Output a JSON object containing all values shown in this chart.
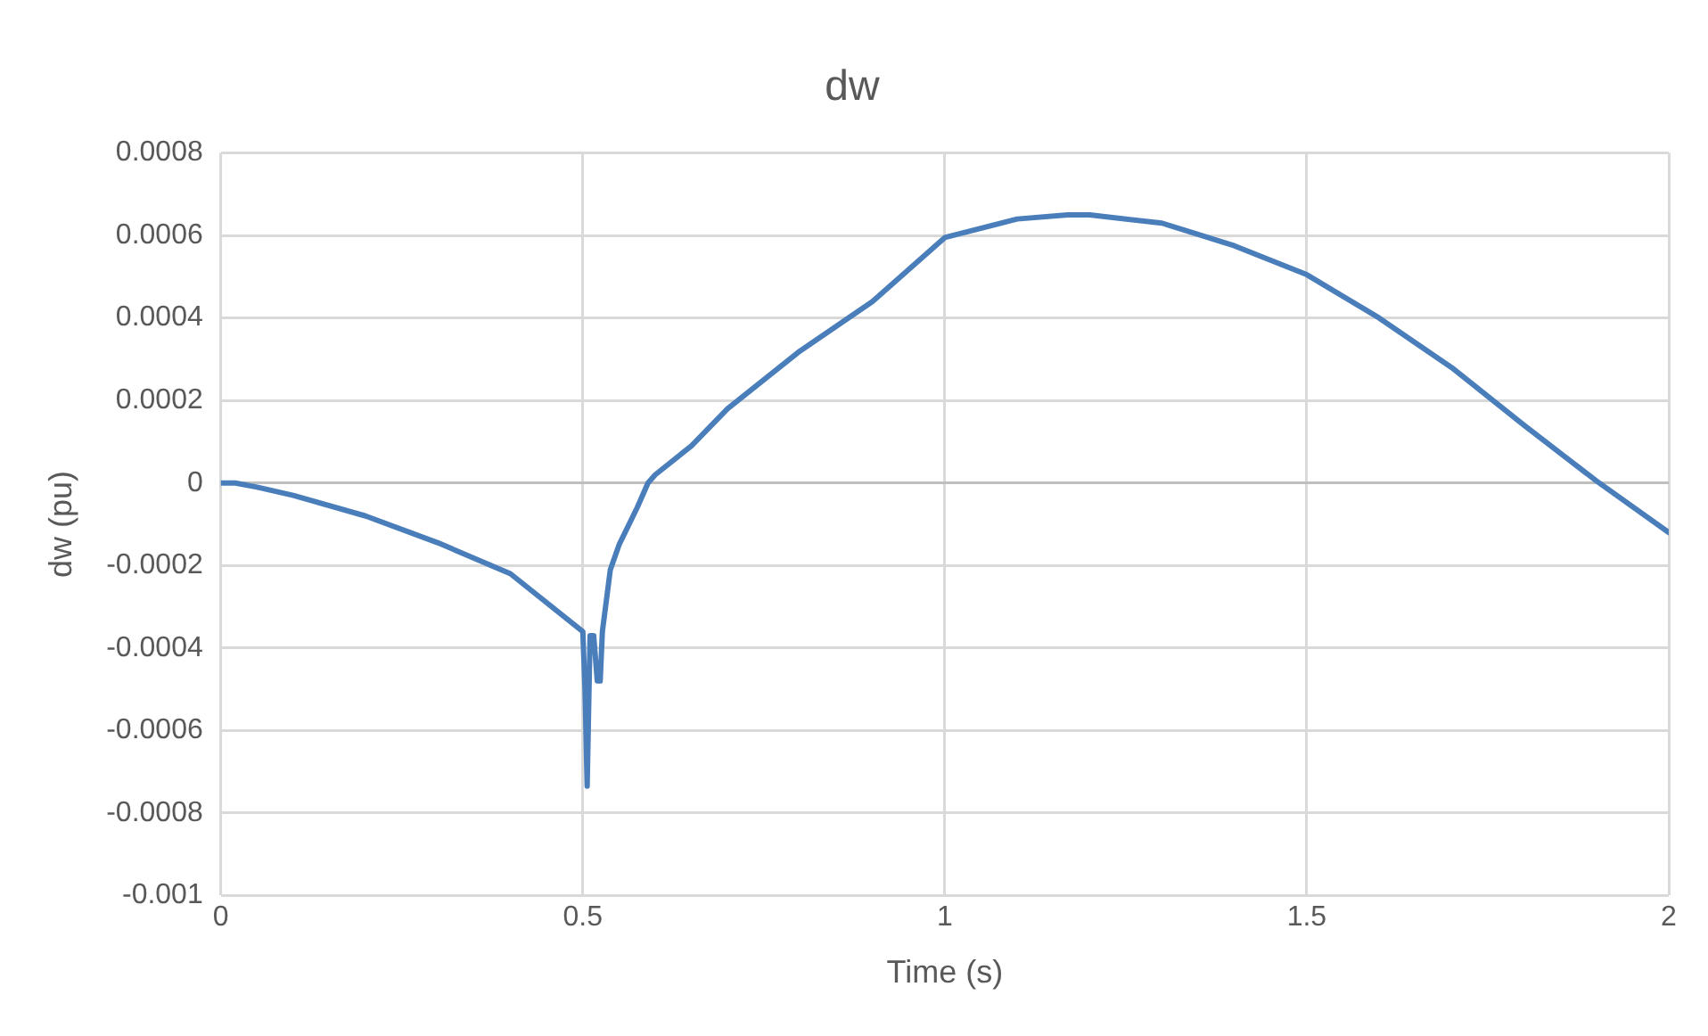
{
  "chart_data": {
    "type": "line",
    "title": "dw",
    "xlabel": "Time (s)",
    "ylabel": "dw (pu)",
    "xlim": [
      0,
      2
    ],
    "xticks": [
      0,
      0.5,
      1,
      1.5,
      2
    ],
    "ylim": [
      -0.001,
      0.0008
    ],
    "yticks": [
      -0.001,
      -0.0008,
      -0.0006,
      -0.0004,
      -0.0002,
      0,
      0.0002,
      0.0004,
      0.0006,
      0.0008
    ],
    "grid": true,
    "legend": false,
    "marker": "none",
    "line_style": "solid",
    "series": [
      {
        "color": "#4a7ebb",
        "x": [
          0,
          0.02,
          0.05,
          0.1,
          0.2,
          0.3,
          0.4,
          0.5,
          0.503,
          0.506,
          0.51,
          0.515,
          0.52,
          0.524,
          0.527,
          0.538,
          0.55,
          0.575,
          0.59,
          0.6,
          0.65,
          0.7,
          0.8,
          0.9,
          1.0,
          1.1,
          1.17,
          1.2,
          1.3,
          1.4,
          1.5,
          1.6,
          1.7,
          1.8,
          1.9,
          2.0
        ],
        "values": [
          0,
          0,
          -1e-05,
          -3e-05,
          -8e-05,
          -0.000145,
          -0.00022,
          -0.00036,
          -0.0005,
          -0.000735,
          -0.00037,
          -0.00037,
          -0.00048,
          -0.00048,
          -0.00036,
          -0.00021,
          -0.00015,
          -6e-05,
          0,
          2e-05,
          9e-05,
          0.00018,
          0.00032,
          0.00044,
          0.000595,
          0.00064,
          0.00065,
          0.00065,
          0.00063,
          0.000575,
          0.000505,
          0.0004,
          0.00028,
          0.00014,
          5e-06,
          -0.00012
        ]
      }
    ]
  }
}
